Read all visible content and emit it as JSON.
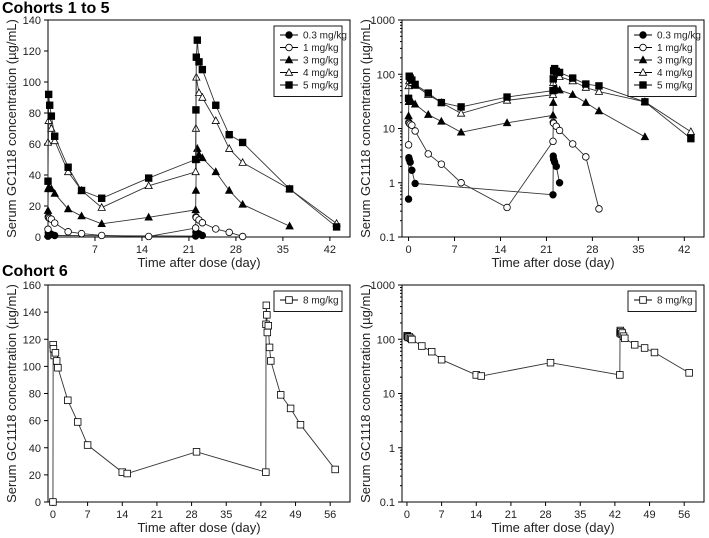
{
  "titles": {
    "top": "Cohorts 1 to 5",
    "bottom": "Cohort 6"
  },
  "chart_data": [
    {
      "type": "line",
      "yscale": "linear",
      "xlabel": "Time after dose (day)",
      "ylabel": "Serum GC1118 concentration (µg/mL)",
      "xlim": [
        0,
        45
      ],
      "ylim": [
        0,
        140
      ],
      "xticks": [
        7,
        14,
        21,
        28,
        35,
        42
      ],
      "yticks": [
        0,
        20,
        40,
        60,
        80,
        100,
        120,
        140
      ],
      "legend": "top-right",
      "series": [
        {
          "name": "0.3 mg/kg",
          "marker": "circle-filled",
          "x": [
            0,
            0.04,
            0.1,
            0.25,
            0.5,
            1,
            22,
            22.04,
            22.1,
            22.25,
            22.5,
            23
          ],
          "y": [
            0.5,
            2.9,
            2.7,
            2.4,
            1.7,
            0.97,
            0.6,
            3.1,
            2.7,
            2.4,
            2.0,
            1.0
          ]
        },
        {
          "name": "1 mg/kg",
          "marker": "circle-open",
          "x": [
            0,
            0.04,
            0.1,
            0.25,
            0.5,
            1,
            3,
            5,
            8,
            15,
            22,
            22.04,
            22.1,
            22.5,
            23,
            25,
            27,
            29
          ],
          "y": [
            5,
            13,
            12.5,
            12,
            11.5,
            9,
            3.4,
            2.2,
            1.0,
            0.35,
            5.8,
            13,
            12.5,
            11,
            9.2,
            5.2,
            3.0,
            0.33
          ]
        },
        {
          "name": "3 mg/kg",
          "marker": "triangle-filled",
          "x": [
            0,
            0.04,
            0.1,
            0.5,
            1,
            3,
            5,
            8,
            15,
            22,
            22.04,
            22.1,
            22.25,
            22.5,
            23,
            25,
            27,
            29,
            36
          ],
          "y": [
            17,
            31,
            32,
            31,
            28,
            18,
            13.5,
            8.5,
            12.7,
            17.5,
            30,
            50,
            57,
            53,
            51,
            42,
            30,
            21,
            7
          ]
        },
        {
          "name": "4 mg/kg",
          "marker": "triangle-open",
          "x": [
            0,
            0.1,
            0.5,
            1,
            3,
            5,
            8,
            15,
            22,
            22.04,
            22.1,
            22.5,
            23,
            25,
            27,
            29,
            36,
            43
          ],
          "y": [
            61,
            75,
            70,
            62,
            42,
            30,
            19,
            33,
            42,
            70,
            103,
            93,
            90,
            75,
            57,
            48,
            31,
            8.7
          ]
        },
        {
          "name": "5 mg/kg",
          "marker": "square-filled",
          "x": [
            0,
            0.1,
            0.25,
            0.5,
            1,
            3,
            5,
            8,
            15,
            22,
            22.04,
            22.1,
            22.25,
            22.5,
            23,
            25,
            27,
            29,
            36,
            43
          ],
          "y": [
            36,
            92,
            85,
            78,
            65,
            45,
            30,
            25,
            38,
            50,
            82,
            116,
            127,
            113,
            108,
            85,
            66,
            61,
            31,
            6.5
          ]
        }
      ]
    },
    {
      "type": "line",
      "yscale": "log",
      "xlabel": "Time after dose (day)",
      "ylabel": "Serum GC1118 concentration (µg/mL)",
      "xlim": [
        -1,
        45
      ],
      "ylim": [
        0.1,
        1000
      ],
      "xticks": [
        0,
        7,
        14,
        21,
        28,
        35,
        42
      ],
      "yticks": [
        0.1,
        1,
        10,
        100,
        1000
      ],
      "legend": "top-right",
      "series_ref": "same as panel 1"
    },
    {
      "type": "line",
      "yscale": "linear",
      "xlabel": "Time after dose (day)",
      "ylabel": "Serum GC1118 concentration (µg/mL)",
      "xlim": [
        -1,
        60
      ],
      "ylim": [
        0,
        160
      ],
      "xticks": [
        0,
        7,
        14,
        21,
        28,
        35,
        42,
        49,
        56
      ],
      "yticks": [
        0,
        20,
        40,
        60,
        80,
        100,
        120,
        140,
        160
      ],
      "legend": "top-right",
      "series": [
        {
          "name": "8 mg/kg",
          "marker": "square-open",
          "x": [
            0,
            0.04,
            0.1,
            0.25,
            0.5,
            0.75,
            1,
            3,
            5,
            7,
            14,
            15,
            29,
            43,
            43.04,
            43.1,
            43.2,
            43.3,
            43.5,
            43.75,
            44,
            46,
            48,
            50,
            57
          ],
          "y": [
            0,
            116,
            113,
            108,
            110,
            104,
            99,
            75,
            59,
            42,
            22,
            21,
            37,
            22,
            131,
            145,
            138,
            125,
            130,
            114,
            104,
            79,
            69,
            57,
            24
          ]
        }
      ]
    },
    {
      "type": "line",
      "yscale": "log",
      "xlabel": "Time after dose (day)",
      "ylabel": "Serum GC1118 concentration (µg/mL)",
      "xlim": [
        -1,
        60
      ],
      "ylim": [
        0.1,
        1000
      ],
      "xticks": [
        0,
        7,
        14,
        21,
        28,
        35,
        42,
        49,
        56
      ],
      "yticks": [
        0.1,
        1,
        10,
        100,
        1000
      ],
      "legend": "top-right",
      "series_ref": "same as panel 3"
    }
  ]
}
